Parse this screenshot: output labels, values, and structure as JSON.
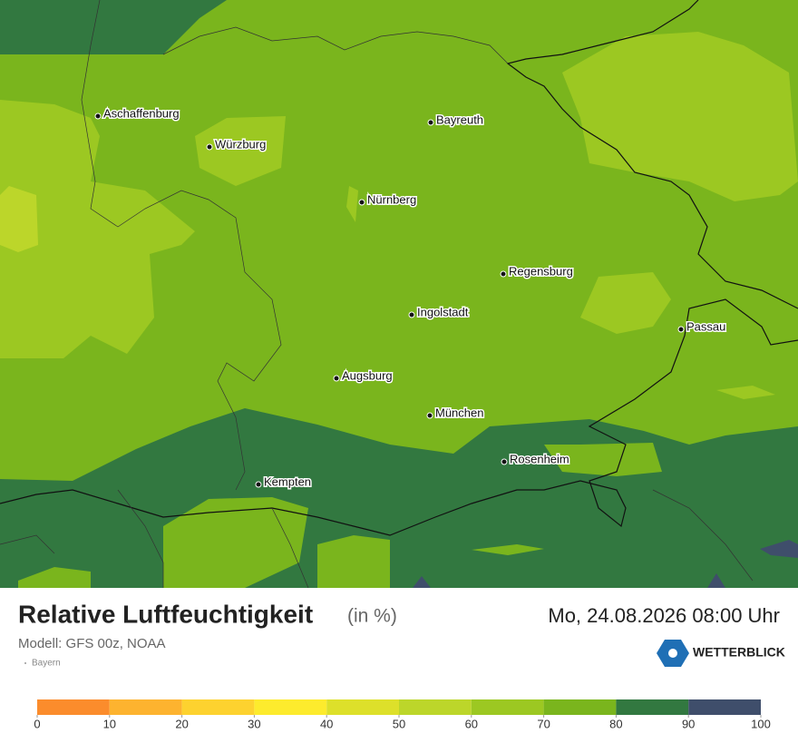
{
  "map": {
    "cities": [
      "Aschaffenburg",
      "Würzburg",
      "Bayreuth",
      "Nürnberg",
      "Regensburg",
      "Ingolstadt",
      "Passau",
      "Augsburg",
      "München",
      "Rosenheim",
      "Kempten"
    ]
  },
  "footer": {
    "title": "Relative Luftfeuchtigkeit",
    "unit": "(in %)",
    "model": "Modell: GFS 00z, NOAA",
    "region": "Bayern",
    "date": "Mo, 24.08.2026 08:00 Uhr",
    "brand": "WETTERBLICK"
  },
  "legend": {
    "ticks": [
      0,
      10,
      20,
      30,
      40,
      50,
      60,
      70,
      80,
      90,
      100
    ],
    "colors": [
      "#fb8c2c",
      "#fdb32f",
      "#fdd22f",
      "#fdeb2d",
      "#dde02a",
      "#bcd62a",
      "#9cc822",
      "#7ab51d",
      "#327840",
      "#3f4e6b"
    ]
  }
}
